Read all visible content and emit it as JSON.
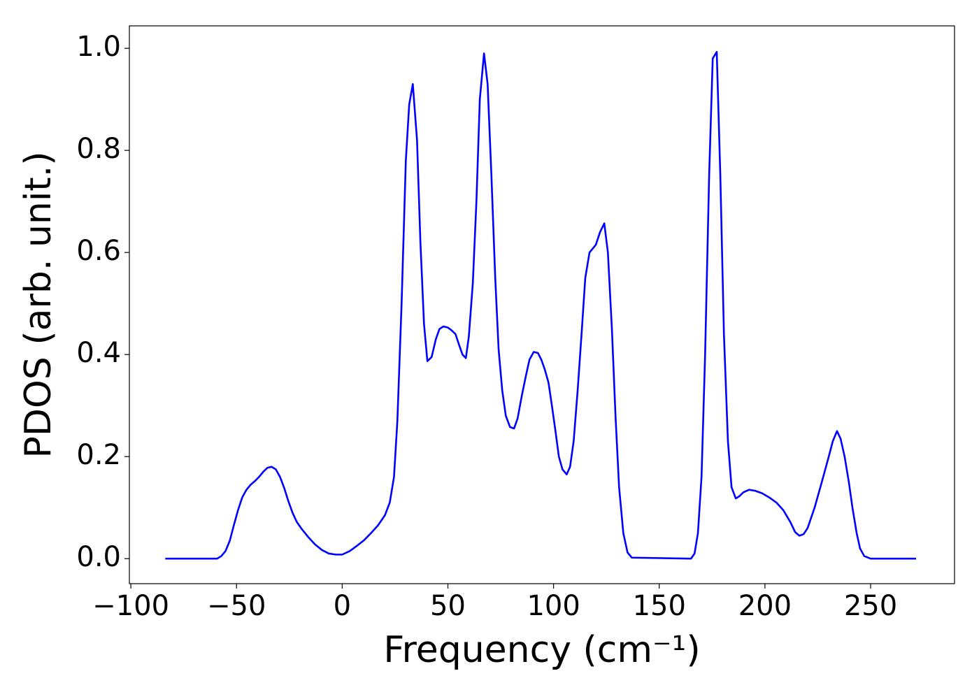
{
  "chart_data": {
    "type": "line",
    "xlabel": "Frequency (cm⁻¹)",
    "ylabel": "PDOS (arb. unit.)",
    "x": [
      -83.7,
      -59.2,
      -57.2,
      -55.2,
      -53.2,
      -51.3,
      -49.3,
      -47.3,
      -45.3,
      -43.3,
      -41.3,
      -39.4,
      -37.4,
      -35.4,
      -33.4,
      -31.4,
      -29.4,
      -27.4,
      -25.5,
      -23.5,
      -21.5,
      -19.5,
      -16.2,
      -12.9,
      -9.6,
      -6.3,
      -3,
      0,
      3.6,
      6.9,
      10.3,
      13.6,
      16.9,
      20.2,
      22.5,
      24.5,
      26.1,
      28.1,
      30.1,
      31.7,
      33.4,
      35.4,
      37,
      38.7,
      40.3,
      42.3,
      44.3,
      46,
      47.9,
      49.9,
      51.6,
      53.6,
      55.2,
      56.9,
      58.5,
      59.9,
      61.8,
      63.5,
      65.1,
      67.1,
      68.8,
      70.6,
      72.4,
      74,
      75.7,
      77.4,
      79.4,
      81.3,
      83,
      85,
      87,
      88.6,
      90.6,
      92.6,
      94.2,
      95.9,
      97.6,
      99.2,
      100.9,
      102.5,
      104.2,
      106.2,
      107.8,
      109.5,
      111.4,
      113.4,
      115,
      117,
      120,
      122,
      124,
      125.7,
      127.6,
      129.3,
      131,
      133,
      135,
      137,
      165,
      166.7,
      168.3,
      170,
      171.7,
      173.6,
      175.3,
      177.2,
      178.9,
      180.6,
      182.5,
      184.2,
      186.2,
      187.8,
      189.8,
      192.5,
      195.4,
      198.7,
      202,
      205.4,
      208.7,
      212,
      214.3,
      216.3,
      218.3,
      220.2,
      223.5,
      226.9,
      230.2,
      232.1,
      234.1,
      235.8,
      237.7,
      239.7,
      241.4,
      243.4,
      245,
      247,
      250,
      271.5
    ],
    "series": [
      {
        "name": "PDOS",
        "color": "#0000ff",
        "values": [
          0,
          0,
          0.005,
          0.015,
          0.035,
          0.065,
          0.095,
          0.12,
          0.135,
          0.145,
          0.152,
          0.16,
          0.17,
          0.178,
          0.18,
          0.175,
          0.16,
          0.138,
          0.113,
          0.09,
          0.072,
          0.06,
          0.043,
          0.028,
          0.017,
          0.01,
          0.008,
          0.008,
          0.015,
          0.025,
          0.036,
          0.05,
          0.065,
          0.085,
          0.11,
          0.16,
          0.27,
          0.5,
          0.78,
          0.89,
          0.93,
          0.82,
          0.62,
          0.46,
          0.387,
          0.395,
          0.43,
          0.45,
          0.455,
          0.453,
          0.448,
          0.44,
          0.42,
          0.4,
          0.393,
          0.435,
          0.54,
          0.7,
          0.9,
          0.99,
          0.93,
          0.75,
          0.55,
          0.41,
          0.33,
          0.28,
          0.258,
          0.255,
          0.275,
          0.32,
          0.36,
          0.39,
          0.405,
          0.403,
          0.39,
          0.37,
          0.345,
          0.3,
          0.25,
          0.2,
          0.175,
          0.165,
          0.18,
          0.23,
          0.33,
          0.45,
          0.55,
          0.6,
          0.615,
          0.64,
          0.657,
          0.6,
          0.45,
          0.28,
          0.14,
          0.05,
          0.012,
          0.002,
          0,
          0.01,
          0.05,
          0.16,
          0.4,
          0.75,
          0.98,
          0.993,
          0.75,
          0.44,
          0.23,
          0.14,
          0.118,
          0.122,
          0.13,
          0.135,
          0.133,
          0.128,
          0.12,
          0.11,
          0.095,
          0.072,
          0.052,
          0.045,
          0.048,
          0.06,
          0.1,
          0.15,
          0.2,
          0.23,
          0.25,
          0.235,
          0.2,
          0.15,
          0.1,
          0.05,
          0.02,
          0.005,
          0,
          0
        ]
      }
    ],
    "xlim": [
      -100.7,
      289.7
    ],
    "ylim": [
      -0.049,
      1.044
    ],
    "xticks": [
      {
        "value": -100,
        "label": "−100"
      },
      {
        "value": -50,
        "label": "−50"
      },
      0,
      50,
      100,
      150,
      200,
      250
    ],
    "yticks": [
      {
        "value": 0,
        "label": "0.0"
      },
      0.2,
      0.4,
      0.6,
      0.8,
      {
        "value": 1,
        "label": "1.0"
      }
    ],
    "grid": false
  }
}
